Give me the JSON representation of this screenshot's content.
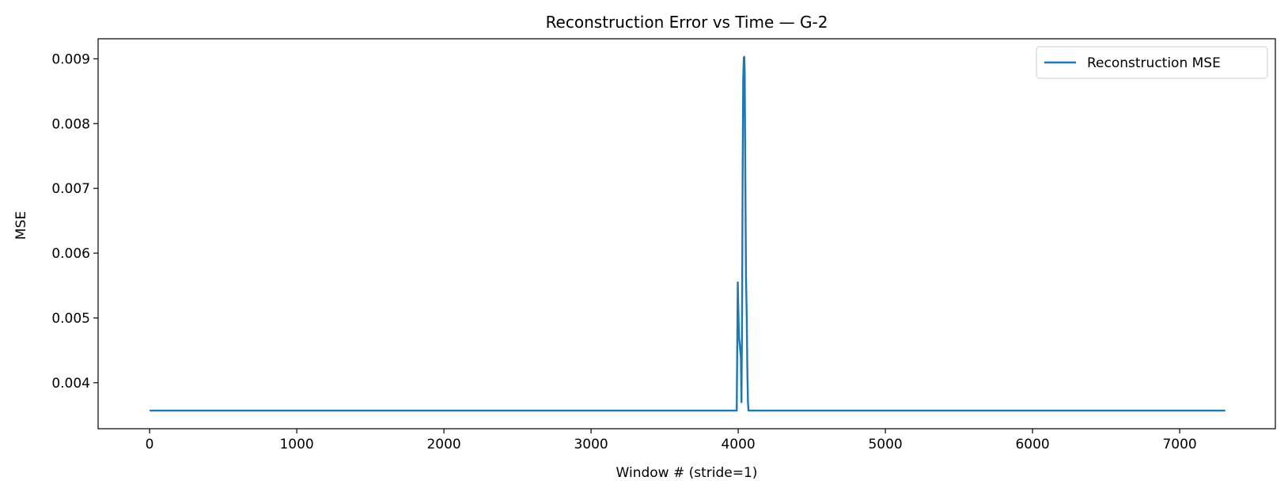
{
  "chart_data": {
    "type": "line",
    "title": "Reconstruction Error vs Time — G-2",
    "xlabel": "Window # (stride=1)",
    "ylabel": "MSE",
    "xlim": [
      -350,
      7650
    ],
    "ylim": [
      0.00329,
      0.00931
    ],
    "x_ticks": [
      0,
      1000,
      2000,
      3000,
      4000,
      5000,
      6000,
      7000
    ],
    "x_tick_labels": [
      "0",
      "1000",
      "2000",
      "3000",
      "4000",
      "5000",
      "6000",
      "7000"
    ],
    "y_ticks": [
      0.004,
      0.005,
      0.006,
      0.007,
      0.008,
      0.009
    ],
    "y_tick_labels": [
      "0.004",
      "0.005",
      "0.006",
      "0.007",
      "0.008",
      "0.009"
    ],
    "grid": false,
    "legend_position": "top-right",
    "series": [
      {
        "name": "Reconstruction MSE",
        "color": "#1f77b4",
        "x": [
          0,
          3990,
          3993,
          3997,
          4000,
          4005,
          4012,
          4018,
          4022,
          4026,
          4030,
          4034,
          4038,
          4041,
          4044,
          4048,
          4053,
          4058,
          4062,
          4066,
          4070,
          4074,
          7310
        ],
        "y": [
          0.00357,
          0.00357,
          0.0045,
          0.00555,
          0.0052,
          0.0047,
          0.00455,
          0.0044,
          0.0037,
          0.005,
          0.0072,
          0.0087,
          0.00902,
          0.00903,
          0.0088,
          0.0072,
          0.0056,
          0.005,
          0.0042,
          0.0037,
          0.00357,
          0.00357,
          0.00357
        ]
      }
    ]
  }
}
